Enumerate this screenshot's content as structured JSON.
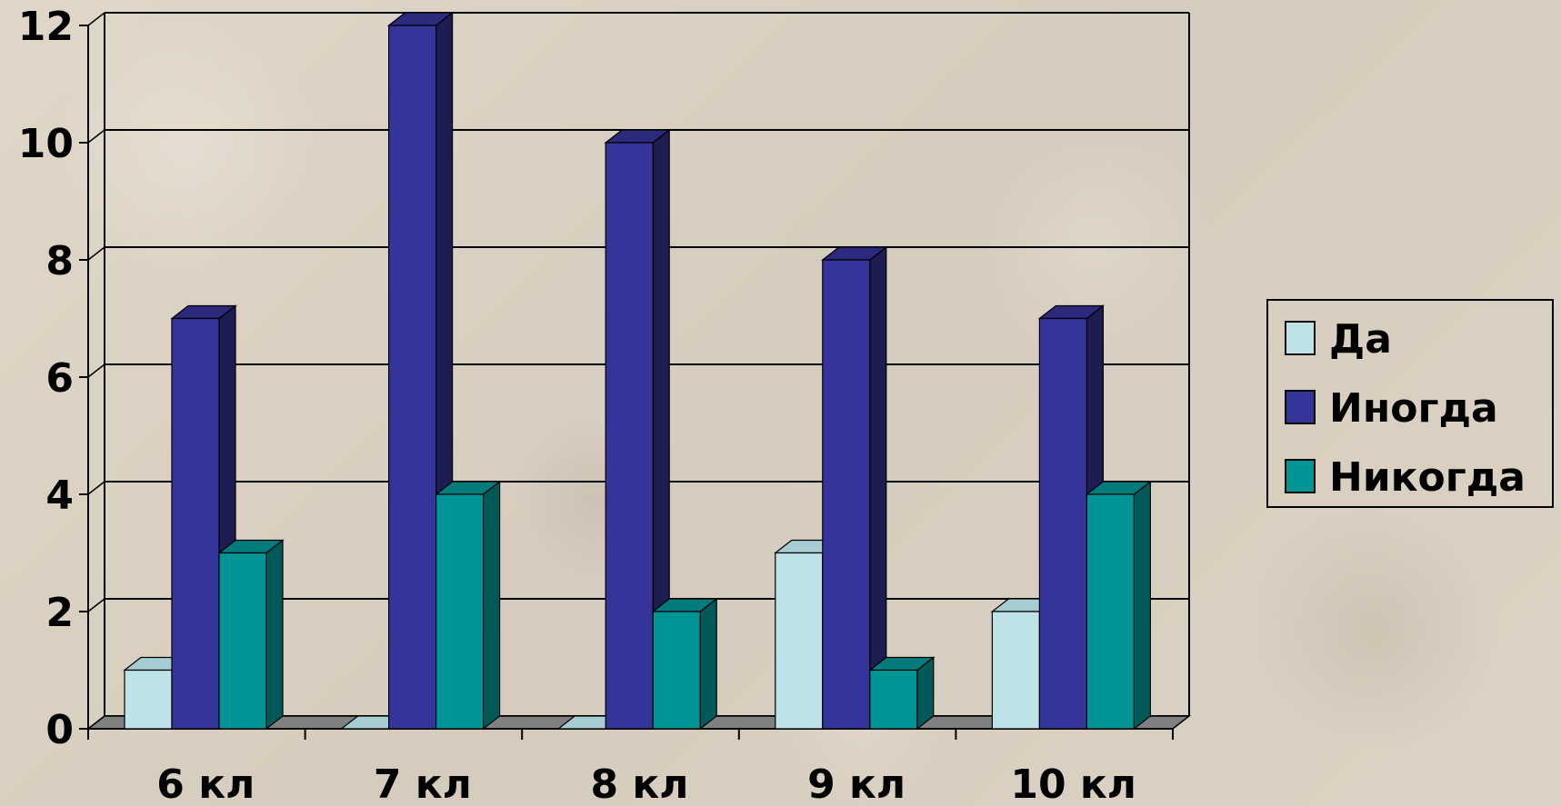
{
  "chart_data": {
    "type": "bar",
    "categories": [
      "6 кл",
      "7 кл",
      "8 кл",
      "9 кл",
      "10 кл"
    ],
    "series": [
      {
        "name": "Да",
        "values": [
          1,
          0,
          0,
          3,
          2
        ]
      },
      {
        "name": "Иногда",
        "values": [
          7,
          12,
          10,
          8,
          7
        ]
      },
      {
        "name": "Никогда",
        "values": [
          3,
          4,
          2,
          1,
          4
        ]
      }
    ],
    "yticks": [
      "0",
      "2",
      "4",
      "6",
      "8",
      "10",
      "12"
    ],
    "ylim": [
      0,
      12
    ],
    "grid": true,
    "legend_position": "right",
    "three_d": true
  },
  "colors": {
    "series": [
      "#bde3e8",
      "#35349a",
      "#009595"
    ],
    "side": [
      "#7fa7ad",
      "#1e1d52",
      "#005a5a"
    ],
    "top": [
      "#a6cdd2",
      "#2b2a7c",
      "#007c7c"
    ]
  }
}
